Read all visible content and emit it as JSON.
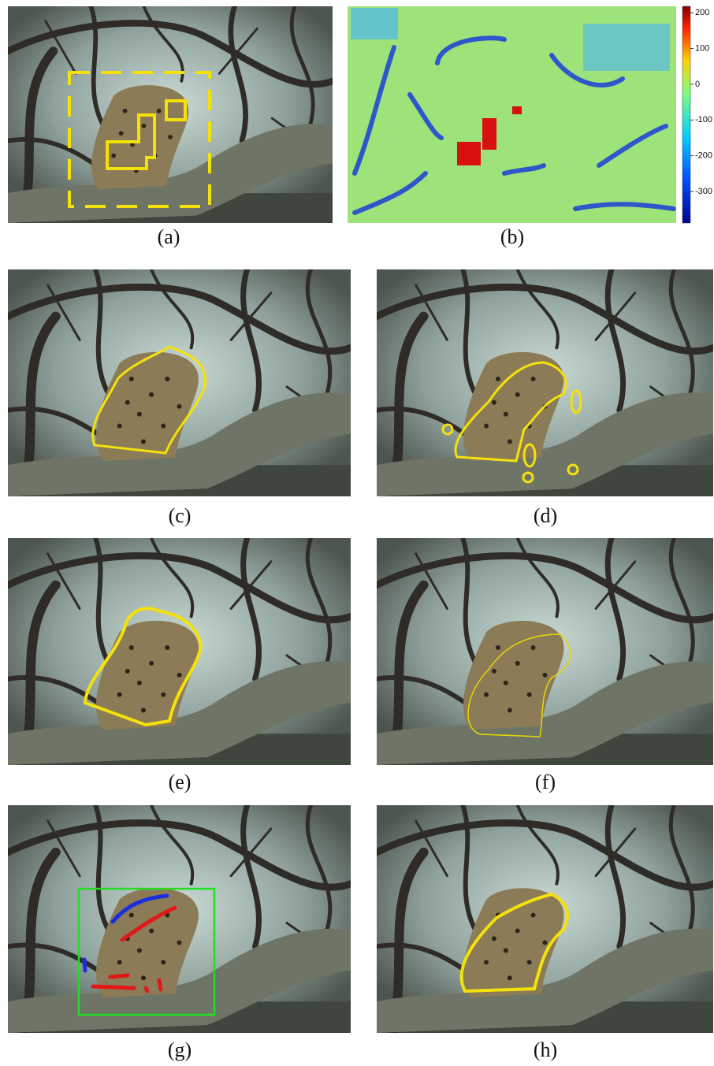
{
  "panels": [
    {
      "label": "(a)"
    },
    {
      "label": "(b)"
    },
    {
      "label": "(c)"
    },
    {
      "label": "(d)"
    },
    {
      "label": "(e)"
    },
    {
      "label": "(f)"
    },
    {
      "label": "(g)"
    },
    {
      "label": "(h)"
    }
  ],
  "colorbar": {
    "lim": [
      -388,
      218
    ],
    "ticks": [
      200,
      100,
      0,
      -100,
      -200,
      -300
    ]
  }
}
